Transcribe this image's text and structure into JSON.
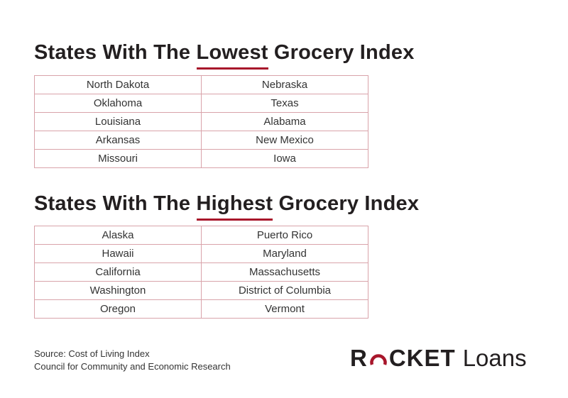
{
  "lowest": {
    "title_prefix": "States With The ",
    "title_highlight": "Lowest",
    "title_suffix": " Grocery Index",
    "rows": [
      [
        "North Dakota",
        "Nebraska"
      ],
      [
        "Oklahoma",
        "Texas"
      ],
      [
        "Louisiana",
        "Alabama"
      ],
      [
        "Arkansas",
        "New Mexico"
      ],
      [
        "Missouri",
        "Iowa"
      ]
    ]
  },
  "highest": {
    "title_prefix": "States With The ",
    "title_highlight": "Highest",
    "title_suffix": " Grocery Index",
    "rows": [
      [
        "Alaska",
        "Puerto Rico"
      ],
      [
        "Hawaii",
        "Maryland"
      ],
      [
        "California",
        "Massachusetts"
      ],
      [
        "Washington",
        "District of Columbia"
      ],
      [
        "Oregon",
        "Vermont"
      ]
    ]
  },
  "source": {
    "line1": "Source: Cost of Living Index",
    "line2": "Council for Community and Economic Research"
  },
  "logo": {
    "brand_before": "R",
    "brand_after": "CKET",
    "sub": "Loans"
  },
  "colors": {
    "accent": "#a8162b",
    "table_border": "#d9a3aa",
    "text": "#231f20"
  }
}
